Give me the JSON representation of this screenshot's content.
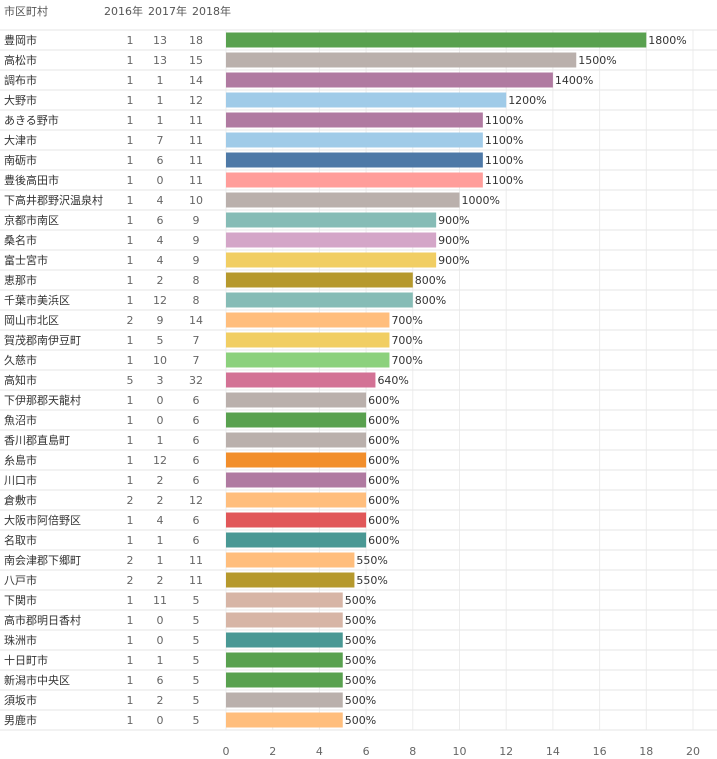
{
  "headers": {
    "name": "市区町村",
    "y2016": "2016年",
    "y2017": "2017年",
    "y2018": "2018年"
  },
  "chart_data": {
    "type": "bar",
    "orientation": "horizontal",
    "xlim": [
      0,
      20
    ],
    "x_ticks": [
      "0",
      "2",
      "4",
      "6",
      "8",
      "10",
      "12",
      "14",
      "16",
      "18",
      "20"
    ],
    "grid": true,
    "rows": [
      {
        "name": "豊岡市",
        "y2016": "1",
        "y2017": "13",
        "y2018": "18",
        "value": 18,
        "label": "1800%",
        "color": "#59a14f"
      },
      {
        "name": "高松市",
        "y2016": "1",
        "y2017": "13",
        "y2018": "15",
        "value": 15,
        "label": "1500%",
        "color": "#bab0ac"
      },
      {
        "name": "調布市",
        "y2016": "1",
        "y2017": "1",
        "y2018": "14",
        "value": 14,
        "label": "1400%",
        "color": "#b07aa1"
      },
      {
        "name": "大野市",
        "y2016": "1",
        "y2017": "1",
        "y2018": "12",
        "value": 12,
        "label": "1200%",
        "color": "#a0cbe8"
      },
      {
        "name": "あきる野市",
        "y2016": "1",
        "y2017": "1",
        "y2018": "11",
        "value": 11,
        "label": "1100%",
        "color": "#b07aa1"
      },
      {
        "name": "大津市",
        "y2016": "1",
        "y2017": "7",
        "y2018": "11",
        "value": 11,
        "label": "1100%",
        "color": "#a0cbe8"
      },
      {
        "name": "南砺市",
        "y2016": "1",
        "y2017": "6",
        "y2018": "11",
        "value": 11,
        "label": "1100%",
        "color": "#4e79a7"
      },
      {
        "name": "豊後高田市",
        "y2016": "1",
        "y2017": "0",
        "y2018": "11",
        "value": 11,
        "label": "1100%",
        "color": "#ff9d9a"
      },
      {
        "name": "下高井郡野沢温泉村",
        "y2016": "1",
        "y2017": "4",
        "y2018": "10",
        "value": 10,
        "label": "1000%",
        "color": "#bab0ac"
      },
      {
        "name": "京都市南区",
        "y2016": "1",
        "y2017": "6",
        "y2018": "9",
        "value": 9,
        "label": "900%",
        "color": "#86bcb6"
      },
      {
        "name": "桑名市",
        "y2016": "1",
        "y2017": "4",
        "y2018": "9",
        "value": 9,
        "label": "900%",
        "color": "#d4a6c8"
      },
      {
        "name": "富士宮市",
        "y2016": "1",
        "y2017": "4",
        "y2018": "9",
        "value": 9,
        "label": "900%",
        "color": "#f1ce63"
      },
      {
        "name": "恵那市",
        "y2016": "1",
        "y2017": "2",
        "y2018": "8",
        "value": 8,
        "label": "800%",
        "color": "#b6992d"
      },
      {
        "name": "千葉市美浜区",
        "y2016": "1",
        "y2017": "12",
        "y2018": "8",
        "value": 8,
        "label": "800%",
        "color": "#86bcb6"
      },
      {
        "name": "岡山市北区",
        "y2016": "2",
        "y2017": "9",
        "y2018": "14",
        "value": 7,
        "label": "700%",
        "color": "#ffbe7d"
      },
      {
        "name": "賀茂郡南伊豆町",
        "y2016": "1",
        "y2017": "5",
        "y2018": "7",
        "value": 7,
        "label": "700%",
        "color": "#f1ce63"
      },
      {
        "name": "久慈市",
        "y2016": "1",
        "y2017": "10",
        "y2018": "7",
        "value": 7,
        "label": "700%",
        "color": "#8cd17d"
      },
      {
        "name": "高知市",
        "y2016": "5",
        "y2017": "3",
        "y2018": "32",
        "value": 6.4,
        "label": "640%",
        "color": "#d37295"
      },
      {
        "name": "下伊那郡天龍村",
        "y2016": "1",
        "y2017": "0",
        "y2018": "6",
        "value": 6,
        "label": "600%",
        "color": "#bab0ac"
      },
      {
        "name": "魚沼市",
        "y2016": "1",
        "y2017": "0",
        "y2018": "6",
        "value": 6,
        "label": "600%",
        "color": "#59a14f"
      },
      {
        "name": "香川郡直島町",
        "y2016": "1",
        "y2017": "1",
        "y2018": "6",
        "value": 6,
        "label": "600%",
        "color": "#bab0ac"
      },
      {
        "name": "糸島市",
        "y2016": "1",
        "y2017": "12",
        "y2018": "6",
        "value": 6,
        "label": "600%",
        "color": "#f28e2b"
      },
      {
        "name": "川口市",
        "y2016": "1",
        "y2017": "2",
        "y2018": "6",
        "value": 6,
        "label": "600%",
        "color": "#b07aa1"
      },
      {
        "name": "倉敷市",
        "y2016": "2",
        "y2017": "2",
        "y2018": "12",
        "value": 6,
        "label": "600%",
        "color": "#ffbe7d"
      },
      {
        "name": "大阪市阿倍野区",
        "y2016": "1",
        "y2017": "4",
        "y2018": "6",
        "value": 6,
        "label": "600%",
        "color": "#e15759"
      },
      {
        "name": "名取市",
        "y2016": "1",
        "y2017": "1",
        "y2018": "6",
        "value": 6,
        "label": "600%",
        "color": "#499894"
      },
      {
        "name": "南会津郡下郷町",
        "y2016": "2",
        "y2017": "1",
        "y2018": "11",
        "value": 5.5,
        "label": "550%",
        "color": "#ffbe7d"
      },
      {
        "name": "八戸市",
        "y2016": "2",
        "y2017": "2",
        "y2018": "11",
        "value": 5.5,
        "label": "550%",
        "color": "#b6992d"
      },
      {
        "name": "下関市",
        "y2016": "1",
        "y2017": "11",
        "y2018": "5",
        "value": 5,
        "label": "500%",
        "color": "#d7b5a6"
      },
      {
        "name": "高市郡明日香村",
        "y2016": "1",
        "y2017": "0",
        "y2018": "5",
        "value": 5,
        "label": "500%",
        "color": "#d7b5a6"
      },
      {
        "name": "珠洲市",
        "y2016": "1",
        "y2017": "0",
        "y2018": "5",
        "value": 5,
        "label": "500%",
        "color": "#499894"
      },
      {
        "name": "十日町市",
        "y2016": "1",
        "y2017": "1",
        "y2018": "5",
        "value": 5,
        "label": "500%",
        "color": "#59a14f"
      },
      {
        "name": "新潟市中央区",
        "y2016": "1",
        "y2017": "6",
        "y2018": "5",
        "value": 5,
        "label": "500%",
        "color": "#59a14f"
      },
      {
        "name": "須坂市",
        "y2016": "1",
        "y2017": "2",
        "y2018": "5",
        "value": 5,
        "label": "500%",
        "color": "#bab0ac"
      },
      {
        "name": "男鹿市",
        "y2016": "1",
        "y2017": "0",
        "y2018": "5",
        "value": 5,
        "label": "500%",
        "color": "#ffbe7d"
      }
    ]
  }
}
